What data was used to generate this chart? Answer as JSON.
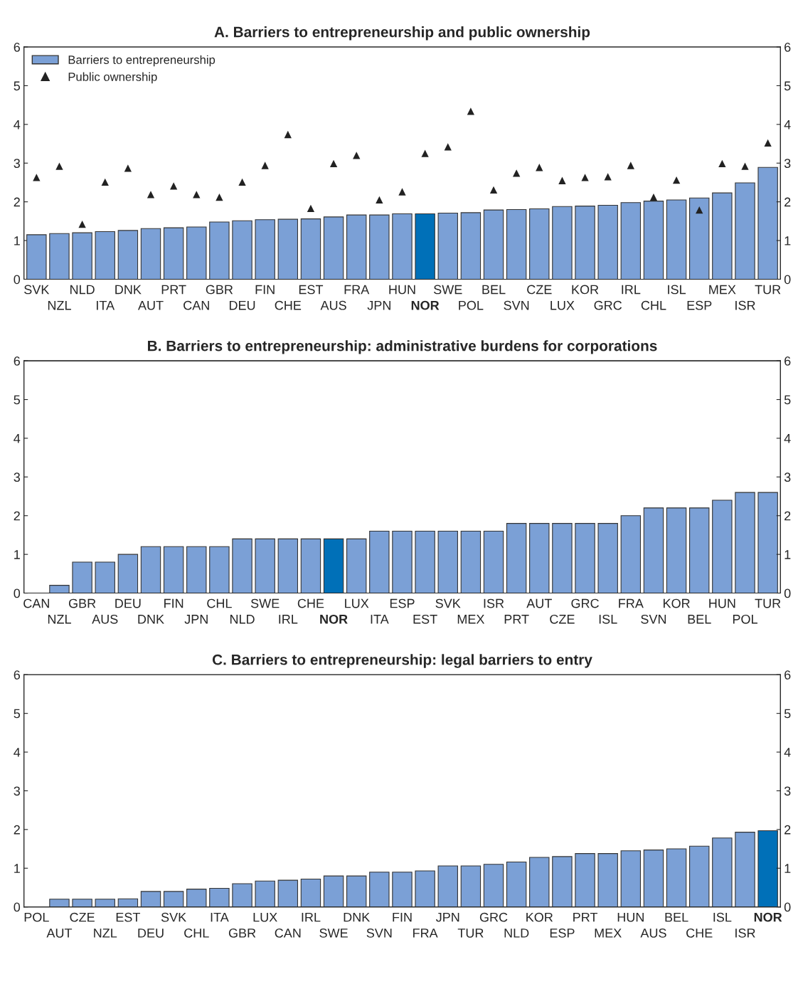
{
  "chart_data": [
    {
      "type": "bar",
      "title": "A. Barriers to entrepreneurship and public ownership",
      "categories": [
        "SVK",
        "NZL",
        "NLD",
        "ITA",
        "DNK",
        "AUT",
        "PRT",
        "CAN",
        "GBR",
        "DEU",
        "FIN",
        "CHE",
        "EST",
        "AUS",
        "FRA",
        "JPN",
        "HUN",
        "NOR",
        "SWE",
        "POL",
        "BEL",
        "SVN",
        "CZE",
        "LUX",
        "KOR",
        "GRC",
        "IRL",
        "CHL",
        "ISL",
        "ESP",
        "MEX",
        "ISR",
        "TUR"
      ],
      "series": [
        {
          "name": "Barriers to entrepreneurship",
          "color": "#7ba0d6",
          "colors": [
            "#7ba0d6",
            "#7ba0d6",
            "#7ba0d6",
            "#7ba0d6",
            "#7ba0d6",
            "#7ba0d6",
            "#7ba0d6",
            "#7ba0d6",
            "#7ba0d6",
            "#7ba0d6",
            "#7ba0d6",
            "#7ba0d6",
            "#7ba0d6",
            "#7ba0d6",
            "#7ba0d6",
            "#7ba0d6",
            "#7ba0d6",
            "#0070b8",
            "#7ba0d6",
            "#7ba0d6",
            "#7ba0d6",
            "#7ba0d6",
            "#7ba0d6",
            "#7ba0d6",
            "#7ba0d6",
            "#7ba0d6",
            "#7ba0d6",
            "#7ba0d6",
            "#7ba0d6",
            "#7ba0d6",
            "#7ba0d6",
            "#7ba0d6",
            "#7ba0d6"
          ],
          "values": [
            1.15,
            1.18,
            1.2,
            1.23,
            1.26,
            1.31,
            1.33,
            1.35,
            1.48,
            1.51,
            1.54,
            1.55,
            1.56,
            1.61,
            1.66,
            1.66,
            1.69,
            1.69,
            1.71,
            1.72,
            1.79,
            1.8,
            1.82,
            1.88,
            1.89,
            1.91,
            1.98,
            2.02,
            2.05,
            2.1,
            2.23,
            2.49,
            2.89
          ]
        },
        {
          "name": "Public ownership",
          "type": "scatter",
          "marker": "triangle",
          "color": "#222222",
          "values": [
            2.63,
            2.92,
            1.42,
            2.51,
            2.87,
            2.19,
            2.41,
            2.19,
            2.12,
            2.51,
            2.94,
            3.74,
            1.83,
            2.99,
            3.2,
            2.05,
            2.26,
            3.25,
            3.42,
            4.34,
            2.31,
            2.74,
            2.89,
            2.55,
            2.63,
            2.65,
            2.94,
            2.12,
            2.56,
            1.79,
            2.99,
            2.92,
            3.52
          ]
        }
      ],
      "ylim": [
        0,
        6
      ],
      "yticks": [
        0,
        1,
        2,
        3,
        4,
        5,
        6
      ],
      "y2lim": [
        0,
        6
      ],
      "y2ticks": [
        0,
        1,
        2,
        3,
        4,
        5,
        6
      ],
      "legend": "top left"
    },
    {
      "type": "bar",
      "title": "B. Barriers to entrepreneurship: administrative burdens for corporations",
      "categories": [
        "CAN",
        "NZL",
        "GBR",
        "AUS",
        "DEU",
        "DNK",
        "FIN",
        "JPN",
        "CHL",
        "NLD",
        "SWE",
        "IRL",
        "CHE",
        "NOR",
        "LUX",
        "ITA",
        "ESP",
        "EST",
        "SVK",
        "MEX",
        "ISR",
        "PRT",
        "AUT",
        "CZE",
        "GRC",
        "ISL",
        "FRA",
        "SVN",
        "KOR",
        "BEL",
        "HUN",
        "POL",
        "TUR"
      ],
      "series": [
        {
          "color": "#7ba0d6",
          "colors": [
            "#7ba0d6",
            "#7ba0d6",
            "#7ba0d6",
            "#7ba0d6",
            "#7ba0d6",
            "#7ba0d6",
            "#7ba0d6",
            "#7ba0d6",
            "#7ba0d6",
            "#7ba0d6",
            "#7ba0d6",
            "#7ba0d6",
            "#7ba0d6",
            "#0070b8",
            "#7ba0d6",
            "#7ba0d6",
            "#7ba0d6",
            "#7ba0d6",
            "#7ba0d6",
            "#7ba0d6",
            "#7ba0d6",
            "#7ba0d6",
            "#7ba0d6",
            "#7ba0d6",
            "#7ba0d6",
            "#7ba0d6",
            "#7ba0d6",
            "#7ba0d6",
            "#7ba0d6",
            "#7ba0d6",
            "#7ba0d6",
            "#7ba0d6",
            "#7ba0d6"
          ],
          "values": [
            0,
            0.2,
            0.8,
            0.8,
            1.0,
            1.2,
            1.2,
            1.2,
            1.2,
            1.4,
            1.4,
            1.4,
            1.4,
            1.4,
            1.4,
            1.6,
            1.6,
            1.6,
            1.6,
            1.6,
            1.6,
            1.8,
            1.8,
            1.8,
            1.8,
            1.8,
            2.0,
            2.2,
            2.2,
            2.2,
            2.4,
            2.6,
            2.6
          ]
        }
      ],
      "ylim": [
        0,
        6
      ],
      "yticks": [
        0,
        1,
        2,
        3,
        4,
        5,
        6
      ],
      "y2lim": [
        0,
        6
      ],
      "y2ticks": [
        0,
        1,
        2,
        3,
        4,
        5,
        6
      ]
    },
    {
      "type": "bar",
      "title": "C. Barriers to entrepreneurship: legal barriers to entry",
      "categories": [
        "POL",
        "AUT",
        "CZE",
        "NZL",
        "EST",
        "DEU",
        "SVK",
        "CHL",
        "ITA",
        "GBR",
        "LUX",
        "CAN",
        "IRL",
        "SWE",
        "DNK",
        "SVN",
        "FIN",
        "FRA",
        "JPN",
        "TUR",
        "GRC",
        "NLD",
        "KOR",
        "ESP",
        "PRT",
        "MEX",
        "HUN",
        "AUS",
        "BEL",
        "CHE",
        "ISL",
        "ISR",
        "NOR"
      ],
      "series": [
        {
          "color": "#7ba0d6",
          "colors": [
            "#7ba0d6",
            "#7ba0d6",
            "#7ba0d6",
            "#7ba0d6",
            "#7ba0d6",
            "#7ba0d6",
            "#7ba0d6",
            "#7ba0d6",
            "#7ba0d6",
            "#7ba0d6",
            "#7ba0d6",
            "#7ba0d6",
            "#7ba0d6",
            "#7ba0d6",
            "#7ba0d6",
            "#7ba0d6",
            "#7ba0d6",
            "#7ba0d6",
            "#7ba0d6",
            "#7ba0d6",
            "#7ba0d6",
            "#7ba0d6",
            "#7ba0d6",
            "#7ba0d6",
            "#7ba0d6",
            "#7ba0d6",
            "#7ba0d6",
            "#7ba0d6",
            "#7ba0d6",
            "#7ba0d6",
            "#7ba0d6",
            "#7ba0d6",
            "#0070b8"
          ],
          "values": [
            0,
            0.2,
            0.2,
            0.2,
            0.21,
            0.4,
            0.4,
            0.46,
            0.48,
            0.6,
            0.67,
            0.69,
            0.72,
            0.8,
            0.8,
            0.9,
            0.9,
            0.93,
            1.06,
            1.06,
            1.1,
            1.16,
            1.28,
            1.3,
            1.38,
            1.38,
            1.45,
            1.47,
            1.5,
            1.57,
            1.78,
            1.93,
            1.97
          ]
        }
      ],
      "ylim": [
        0,
        6
      ],
      "yticks": [
        0,
        1,
        2,
        3,
        4,
        5,
        6
      ],
      "y2lim": [
        0,
        6
      ],
      "y2ticks": [
        0,
        1,
        2,
        3,
        4,
        5,
        6
      ]
    }
  ]
}
